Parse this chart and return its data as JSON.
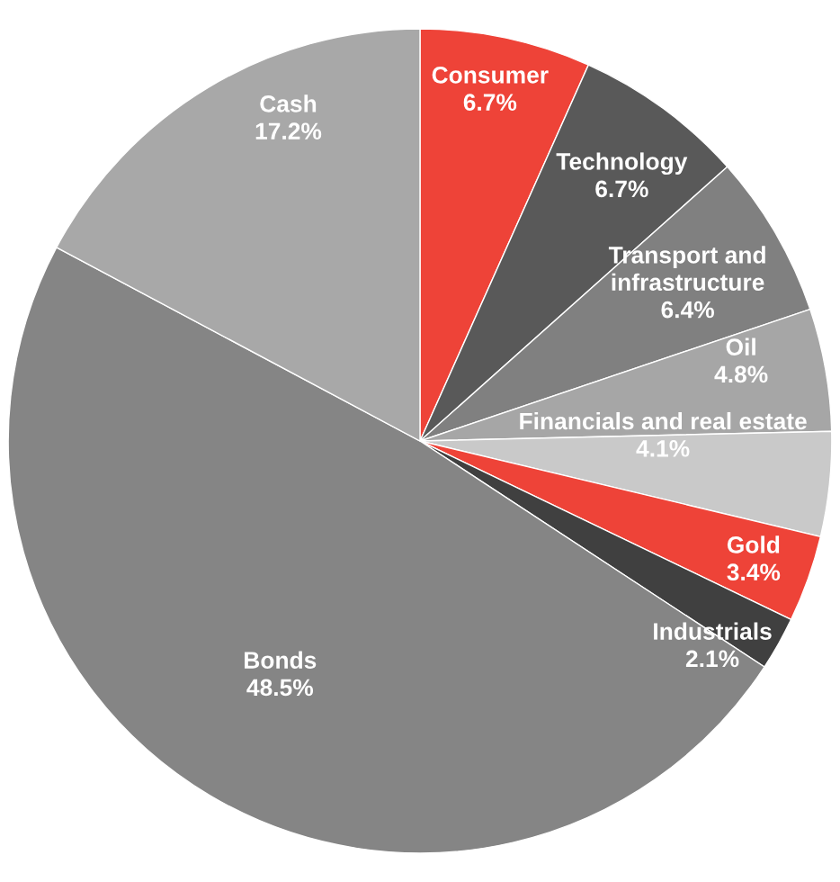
{
  "chart_data": {
    "type": "pie",
    "categories": [
      "Consumer",
      "Technology",
      "Transport and\ninfrastructure",
      "Oil",
      "Financials and real estate",
      "Gold",
      "Industrials",
      "Bonds",
      "Cash"
    ],
    "values": [
      6.7,
      6.7,
      6.4,
      4.8,
      4.1,
      3.4,
      2.1,
      48.5,
      17.2
    ],
    "colors": [
      "#ee4338",
      "#595959",
      "#808080",
      "#a6a6a6",
      "#c9c9c9",
      "#ee4338",
      "#404040",
      "#858585",
      "#a8a8a8"
    ],
    "value_labels": [
      "6.7%",
      "6.7%",
      "6.4%",
      "4.8%",
      "4.1%",
      "3.4%",
      "2.1%",
      "48.5%",
      "17.2%"
    ]
  }
}
